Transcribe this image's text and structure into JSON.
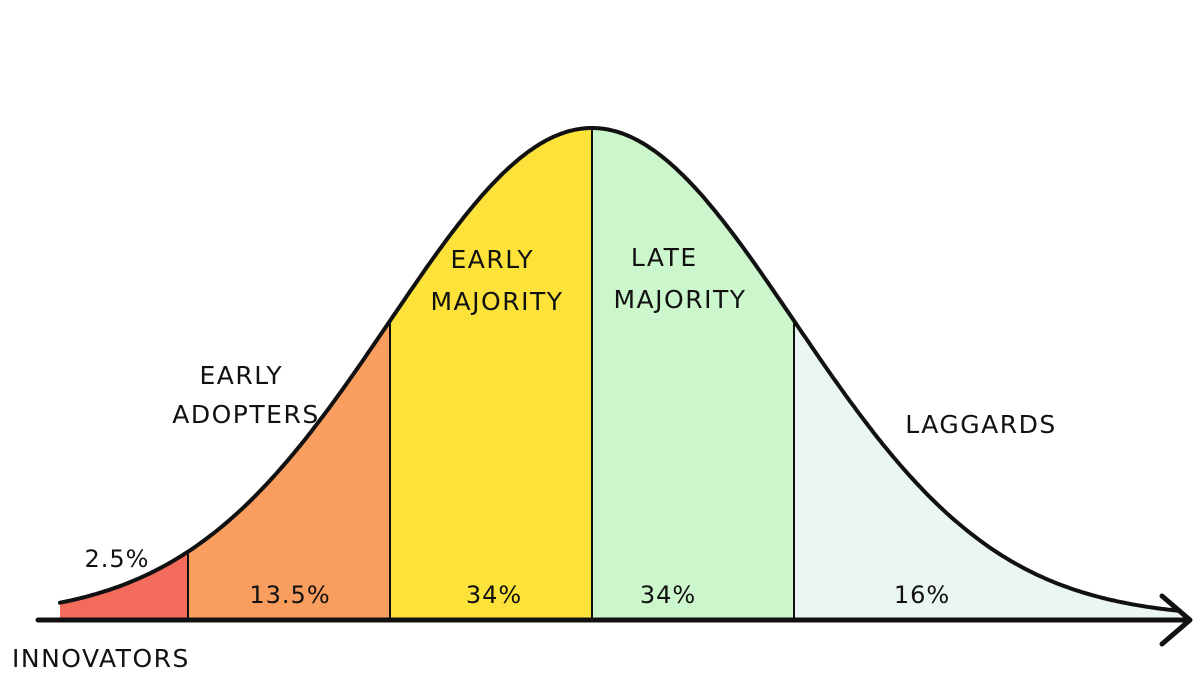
{
  "diagram": {
    "segments": [
      {
        "key": "innovators",
        "label_lines": [
          "INNOVATORS"
        ],
        "percent": "2.5%",
        "value": 2.5,
        "color": "#f26b5b"
      },
      {
        "key": "early_adopters",
        "label_lines": [
          "EARLY",
          "ADOPTERS"
        ],
        "percent": "13.5%",
        "value": 13.5,
        "color": "#f99e5e"
      },
      {
        "key": "early_majority",
        "label_lines": [
          "EARLY",
          "MAJORITY"
        ],
        "percent": "34%",
        "value": 34,
        "color": "#fde23a"
      },
      {
        "key": "late_majority",
        "label_lines": [
          "LATE",
          "MAJORITY"
        ],
        "percent": "34%",
        "value": 34,
        "color": "#ccf7cc"
      },
      {
        "key": "laggards",
        "label_lines": [
          "LAGGARDS"
        ],
        "percent": "16%",
        "value": 16,
        "color": "#eaf6f4"
      }
    ],
    "curve_color": "#111111",
    "background": "#ffffff"
  }
}
